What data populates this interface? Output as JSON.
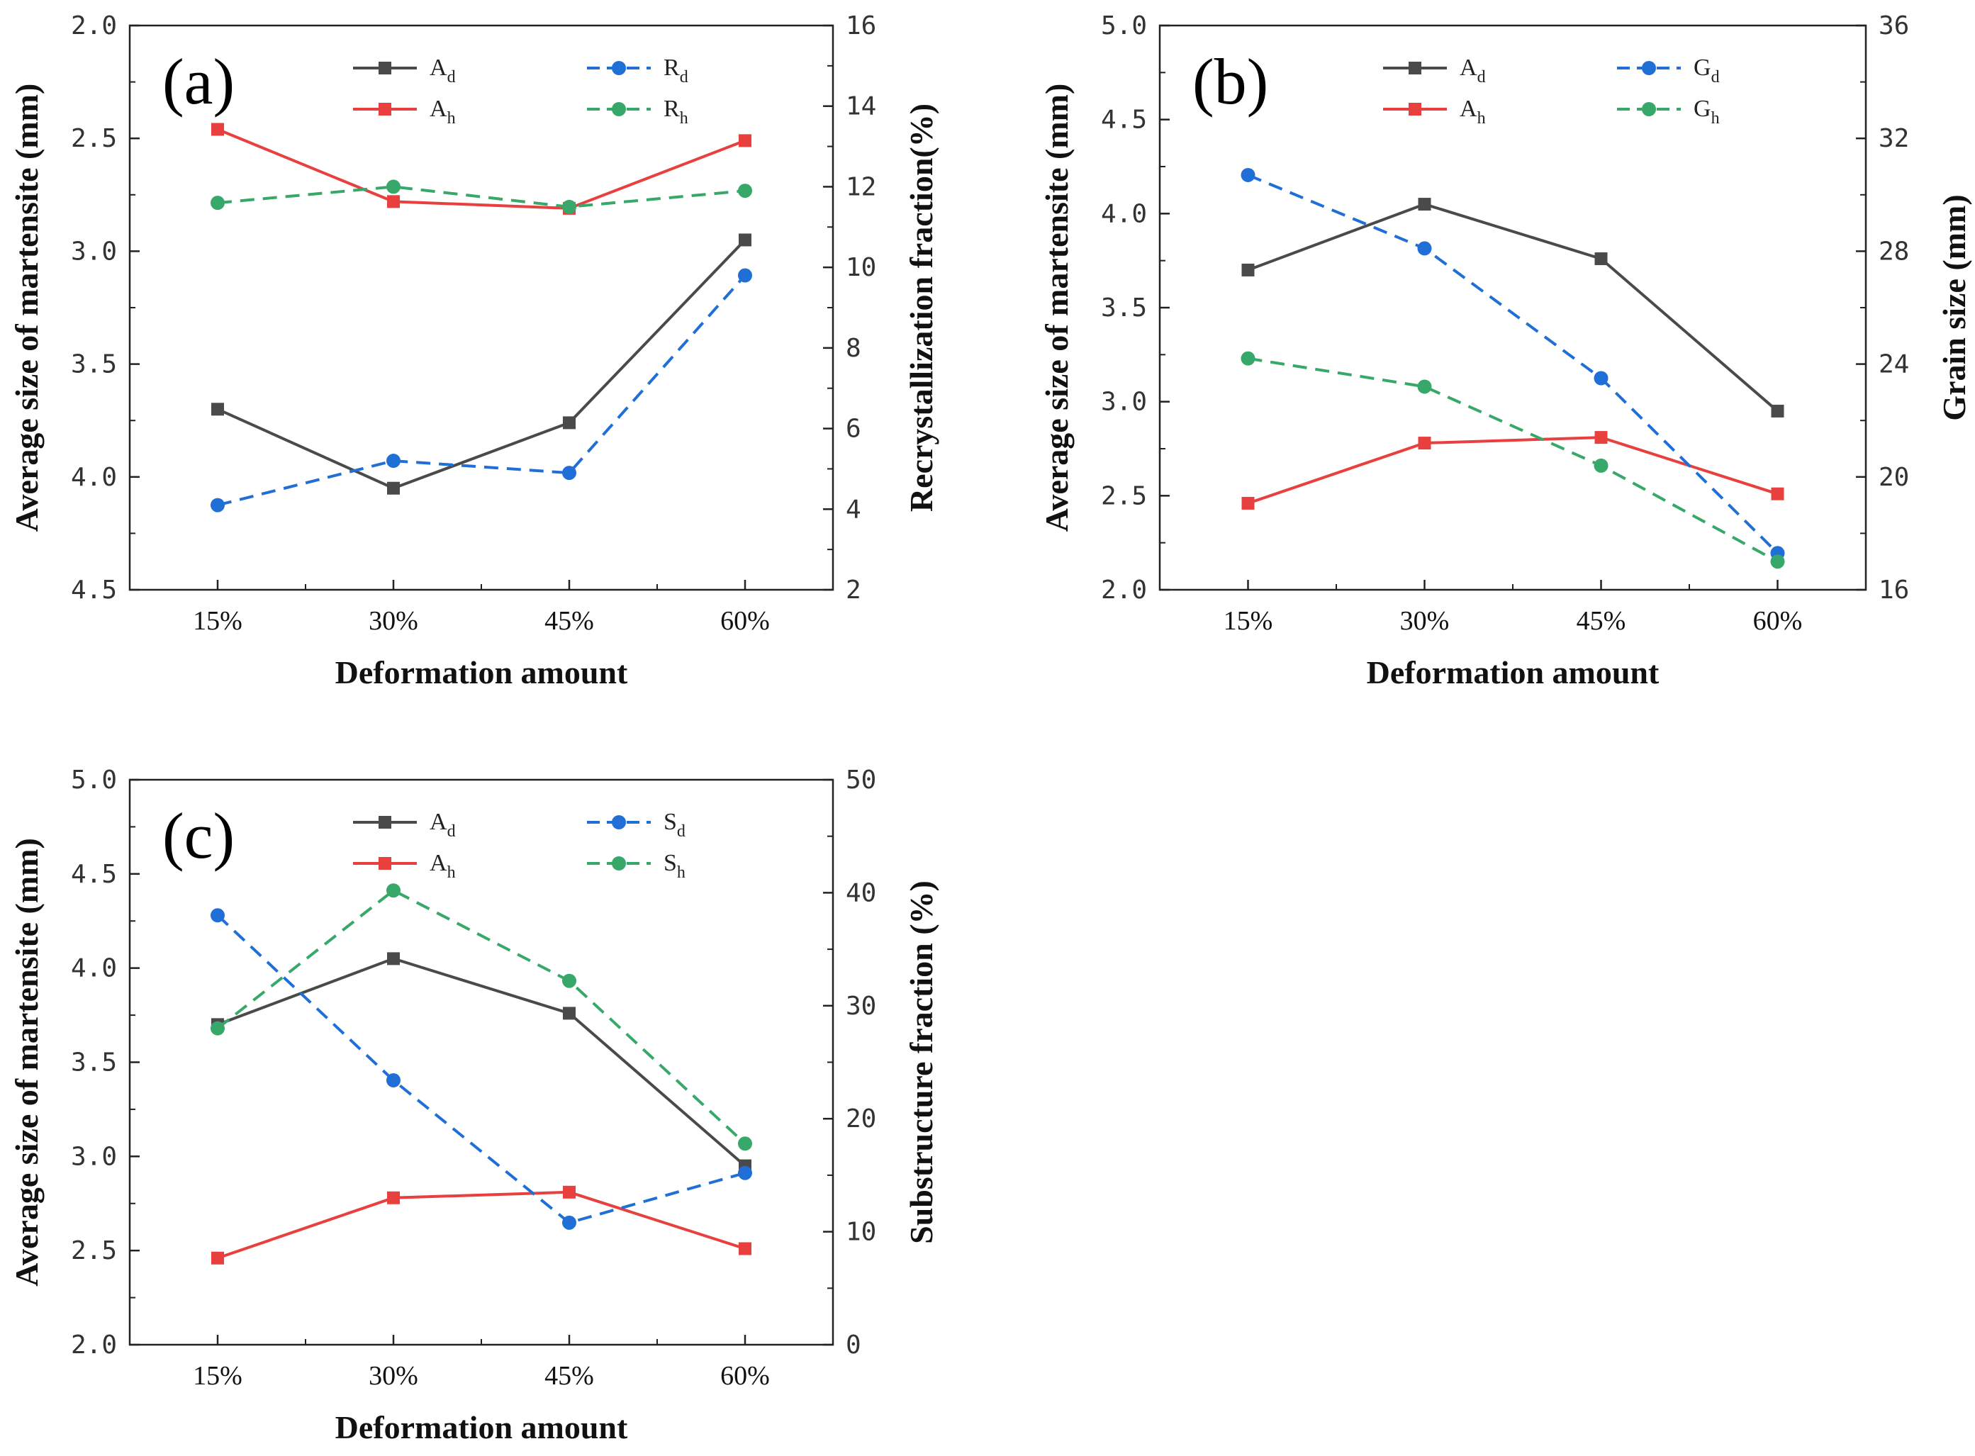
{
  "colors": {
    "A_d": "#4a4a4a",
    "A_h": "#e8403f",
    "blue": "#1f6fd6",
    "green": "#37a86a"
  },
  "chart_data": [
    {
      "type": "line",
      "panel_label": "(a)",
      "xlabel": "Deformation amount",
      "categories": [
        "15%",
        "30%",
        "45%",
        "60%"
      ],
      "left_axis": {
        "label": "Average size of martensite (mm)",
        "range": [
          4.5,
          2.0
        ],
        "inverted": true,
        "ticks": [
          "2.0",
          "2.5",
          "3.0",
          "3.5",
          "4.0",
          "4.5"
        ],
        "tick_values": [
          2.0,
          2.5,
          3.0,
          3.5,
          4.0,
          4.5
        ]
      },
      "right_axis": {
        "label": "Recrystallization fraction(%)",
        "range": [
          2,
          16
        ],
        "ticks": [
          "2",
          "4",
          "6",
          "8",
          "10",
          "12",
          "14",
          "16"
        ],
        "tick_values": [
          2,
          4,
          6,
          8,
          10,
          12,
          14,
          16
        ]
      },
      "series": [
        {
          "name": "A",
          "sub": "d",
          "axis": "left",
          "style": "solid",
          "marker": "square",
          "color_key": "A_d",
          "values": [
            3.7,
            4.05,
            3.76,
            2.95
          ]
        },
        {
          "name": "A",
          "sub": "h",
          "axis": "left",
          "style": "solid",
          "marker": "square",
          "color_key": "A_h",
          "values": [
            2.46,
            2.78,
            2.81,
            2.51
          ]
        },
        {
          "name": "R",
          "sub": "d",
          "axis": "right",
          "style": "dashed",
          "marker": "circle",
          "color_key": "blue",
          "values": [
            4.1,
            5.2,
            4.9,
            9.8
          ]
        },
        {
          "name": "R",
          "sub": "h",
          "axis": "right",
          "style": "dashed",
          "marker": "circle",
          "color_key": "green",
          "values": [
            11.6,
            12.0,
            11.5,
            11.9
          ]
        }
      ]
    },
    {
      "type": "line",
      "panel_label": "(b)",
      "xlabel": "Deformation amount",
      "categories": [
        "15%",
        "30%",
        "45%",
        "60%"
      ],
      "left_axis": {
        "label": "Average size of martensite (mm)",
        "range": [
          2.0,
          5.0
        ],
        "inverted": false,
        "ticks": [
          "2.0",
          "2.5",
          "3.0",
          "3.5",
          "4.0",
          "4.5",
          "5.0"
        ],
        "tick_values": [
          2.0,
          2.5,
          3.0,
          3.5,
          4.0,
          4.5,
          5.0
        ]
      },
      "right_axis": {
        "label": "Grain size (mm)",
        "range": [
          16,
          36
        ],
        "ticks": [
          "16",
          "20",
          "24",
          "28",
          "32",
          "36"
        ],
        "tick_values": [
          16,
          20,
          24,
          28,
          32,
          36
        ]
      },
      "series": [
        {
          "name": "A",
          "sub": "d",
          "axis": "left",
          "style": "solid",
          "marker": "square",
          "color_key": "A_d",
          "values": [
            3.7,
            4.05,
            3.76,
            2.95
          ]
        },
        {
          "name": "A",
          "sub": "h",
          "axis": "left",
          "style": "solid",
          "marker": "square",
          "color_key": "A_h",
          "values": [
            2.46,
            2.78,
            2.81,
            2.51
          ]
        },
        {
          "name": "G",
          "sub": "d",
          "axis": "right",
          "style": "dashed",
          "marker": "circle",
          "color_key": "blue",
          "values": [
            30.7,
            28.1,
            23.5,
            17.3
          ]
        },
        {
          "name": "G",
          "sub": "h",
          "axis": "right",
          "style": "dashed",
          "marker": "circle",
          "color_key": "green",
          "values": [
            24.2,
            23.2,
            20.4,
            17.0
          ]
        }
      ]
    },
    {
      "type": "line",
      "panel_label": "(c)",
      "xlabel": "Deformation amount",
      "categories": [
        "15%",
        "30%",
        "45%",
        "60%"
      ],
      "left_axis": {
        "label": "Average size of martensite (mm)",
        "range": [
          2.0,
          5.0
        ],
        "inverted": false,
        "ticks": [
          "2.0",
          "2.5",
          "3.0",
          "3.5",
          "4.0",
          "4.5",
          "5.0"
        ],
        "tick_values": [
          2.0,
          2.5,
          3.0,
          3.5,
          4.0,
          4.5,
          5.0
        ]
      },
      "right_axis": {
        "label": "Substructure fraction (%)",
        "range": [
          0,
          50
        ],
        "ticks": [
          "0",
          "10",
          "20",
          "30",
          "40",
          "50"
        ],
        "tick_values": [
          0,
          10,
          20,
          30,
          40,
          50
        ]
      },
      "series": [
        {
          "name": "A",
          "sub": "d",
          "axis": "left",
          "style": "solid",
          "marker": "square",
          "color_key": "A_d",
          "values": [
            3.7,
            4.05,
            3.76,
            2.95
          ]
        },
        {
          "name": "A",
          "sub": "h",
          "axis": "left",
          "style": "solid",
          "marker": "square",
          "color_key": "A_h",
          "values": [
            2.46,
            2.78,
            2.81,
            2.51
          ]
        },
        {
          "name": "S",
          "sub": "d",
          "axis": "right",
          "style": "dashed",
          "marker": "circle",
          "color_key": "blue",
          "values": [
            38.0,
            23.4,
            10.8,
            15.2
          ]
        },
        {
          "name": "S",
          "sub": "h",
          "axis": "right",
          "style": "dashed",
          "marker": "circle",
          "color_key": "green",
          "values": [
            28.0,
            40.2,
            32.2,
            17.8
          ]
        }
      ]
    }
  ]
}
